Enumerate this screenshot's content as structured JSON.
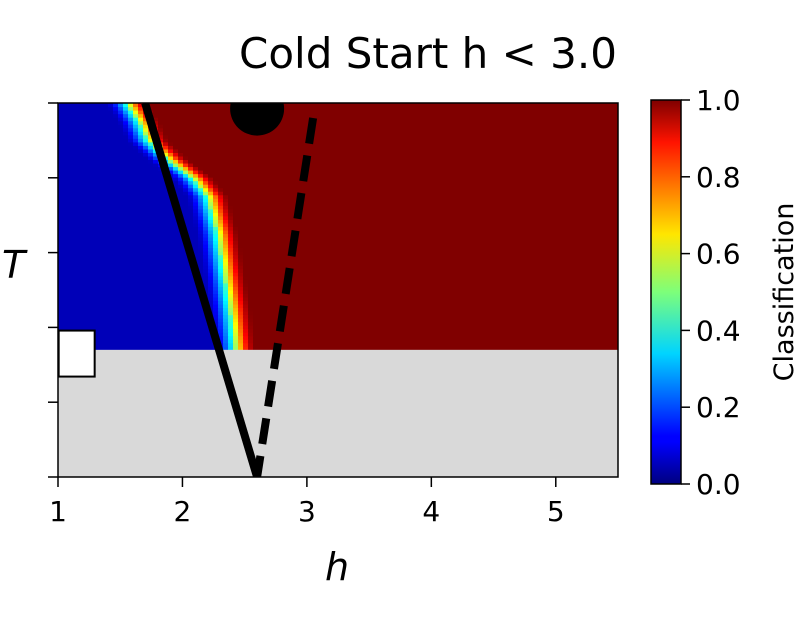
{
  "chart_data": {
    "type": "heatmap",
    "title": "Cold Start h < 3.0",
    "xlabel": "h",
    "ylabel": "T",
    "xlim": [
      1.0,
      5.5
    ],
    "ylim": [
      0.0,
      1.0
    ],
    "x_ticks": [
      1,
      2,
      3,
      4,
      5
    ],
    "x_tick_labels": [
      "1",
      "2",
      "3",
      "4",
      "5"
    ],
    "y_ticks": [
      0.0,
      0.2,
      0.4,
      0.6,
      0.8,
      1.0
    ],
    "grid": false,
    "legend": "none",
    "classification_boundary": {
      "description": "h value where classification crosses 0.5 at each T (region left = 0, right = 1)",
      "points": [
        {
          "T": 1.0,
          "h": 1.55
        },
        {
          "T": 0.95,
          "h": 1.65
        },
        {
          "T": 0.9,
          "h": 1.72
        },
        {
          "T": 0.85,
          "h": 1.88
        },
        {
          "T": 0.8,
          "h": 2.08
        },
        {
          "T": 0.75,
          "h": 2.2
        },
        {
          "T": 0.65,
          "h": 2.28
        },
        {
          "T": 0.55,
          "h": 2.33
        },
        {
          "T": 0.45,
          "h": 2.38
        },
        {
          "T": 0.35,
          "h": 2.42
        }
      ],
      "transition_width_h": 0.35
    },
    "masked_region": {
      "T_min": 0.0,
      "T_max": 0.34,
      "color": "#d9d9d9"
    },
    "overlay_lines": [
      {
        "name": "solid-line",
        "style": "solid",
        "points": [
          [
            1.7,
            1.0
          ],
          [
            2.6,
            0.0
          ]
        ]
      },
      {
        "name": "dashed-line",
        "style": "dashed",
        "points": [
          [
            3.05,
            0.96
          ],
          [
            2.6,
            0.0
          ]
        ]
      }
    ],
    "markers": [
      {
        "name": "black-circle-marker",
        "shape": "circle",
        "color": "#000000",
        "h": 2.6,
        "T": 0.985
      },
      {
        "name": "white-square-marker",
        "shape": "square",
        "color": "#ffffff",
        "h": 1.15,
        "T": 0.33
      }
    ],
    "colorbar": {
      "label": "Classification",
      "min": 0.0,
      "max": 1.0,
      "ticks": [
        0.0,
        0.2,
        0.4,
        0.6,
        0.8,
        1.0
      ],
      "tick_labels": [
        "0.0",
        "0.2",
        "0.4",
        "0.6",
        "0.8",
        "1.0"
      ],
      "colormap": "jet"
    }
  }
}
